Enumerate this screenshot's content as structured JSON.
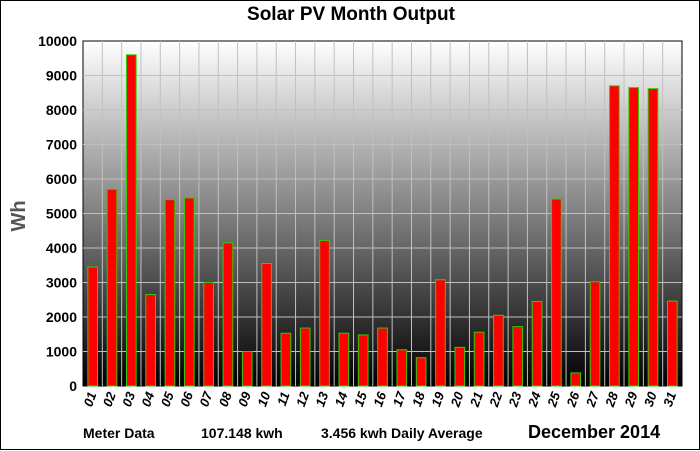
{
  "chart_data": {
    "type": "bar",
    "title": "Solar PV Month Output",
    "ylabel": "Wh",
    "xlabel": "",
    "ylim": [
      0,
      10000
    ],
    "yticks": [
      0,
      1000,
      2000,
      3000,
      4000,
      5000,
      6000,
      7000,
      8000,
      9000,
      10000
    ],
    "grid": true,
    "categories": [
      "01",
      "02",
      "03",
      "04",
      "05",
      "06",
      "07",
      "08",
      "09",
      "10",
      "11",
      "12",
      "13",
      "14",
      "15",
      "16",
      "17",
      "18",
      "19",
      "20",
      "21",
      "22",
      "23",
      "24",
      "25",
      "26",
      "27",
      "28",
      "29",
      "30",
      "31"
    ],
    "values": [
      3450,
      5700,
      9600,
      2650,
      5400,
      5450,
      3000,
      4150,
      1000,
      3550,
      1530,
      1680,
      4220,
      1530,
      1480,
      1680,
      1050,
      820,
      3080,
      1120,
      1560,
      2050,
      1720,
      2450,
      5420,
      380,
      3020,
      8700,
      8650,
      8620,
      2460
    ],
    "colors": {
      "bar_fill": "#ff0000",
      "bar_edge": "#33cc00",
      "grid": "#c0c0c0",
      "bg_top": "#ffffff",
      "bg_bottom": "#000000"
    }
  },
  "footer": {
    "meter_label": "Meter Data",
    "total": "107.148 kwh",
    "daily_average": "3.456 kwh Daily Average",
    "month": "December 2014"
  }
}
